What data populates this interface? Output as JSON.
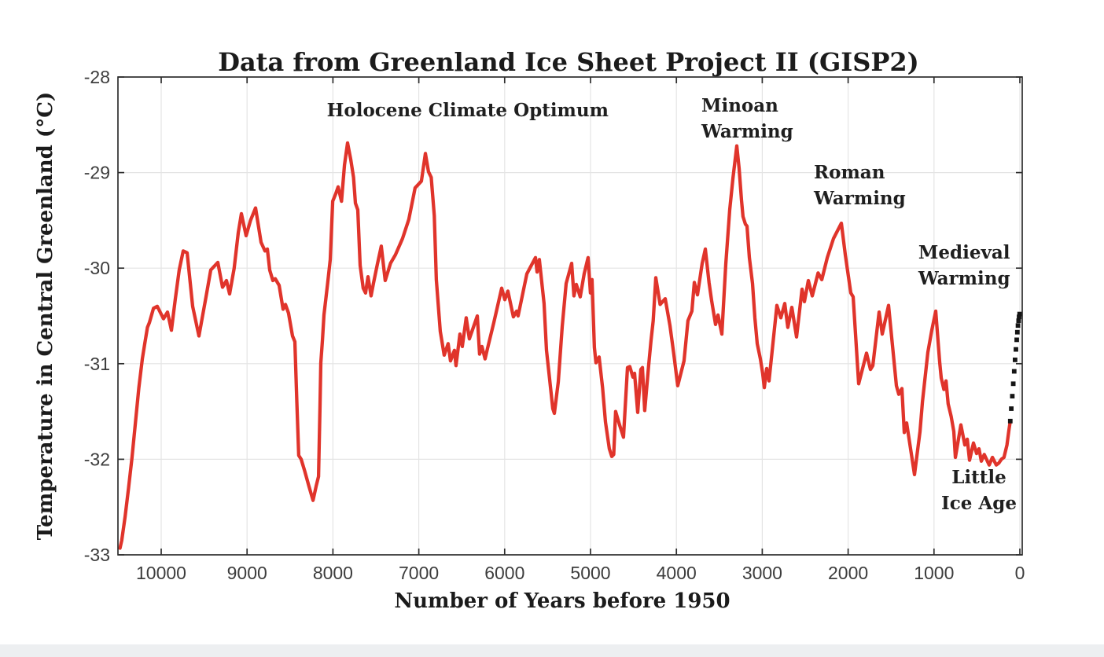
{
  "figure": {
    "title": "Data from Greenland Ice Sheet Project II (GISP2)",
    "x_axis_label": "Number of Years before 1950",
    "y_axis_label": "Temperature in Central Greenland (°C)"
  },
  "colors": {
    "line": "#e0342b",
    "dotted": "#151515",
    "grid": "#e4e4e4",
    "axis": "#2e2e2e",
    "heading_text": "#1b1b1b",
    "tick_text": "#3d3d3d",
    "background": "#ffffff",
    "bottom_strip": "#edeff1"
  },
  "chart_data": {
    "type": "line",
    "title": "Data from Greenland Ice Sheet Project II (GISP2)",
    "xlabel": "Number of Years before 1950",
    "ylabel": "Temperature in Central Greenland (°C)",
    "x_direction": "reversed",
    "xlim": [
      10500,
      0
    ],
    "ylim": [
      -33,
      -28
    ],
    "x_ticks": [
      10000,
      9000,
      8000,
      7000,
      6000,
      5000,
      4000,
      3000,
      2000,
      1000,
      0
    ],
    "y_ticks": [
      -33,
      -32,
      -31,
      -30,
      -29,
      -28
    ],
    "grid": true,
    "legend": "none",
    "series": [
      {
        "name": "GISP2 ice-core temperature reconstruction",
        "color": "#e0342b",
        "style": "solid",
        "points": [
          [
            10480,
            -32.93
          ],
          [
            10460,
            -32.85
          ],
          [
            10420,
            -32.6
          ],
          [
            10380,
            -32.3
          ],
          [
            10340,
            -31.98
          ],
          [
            10300,
            -31.62
          ],
          [
            10260,
            -31.25
          ],
          [
            10220,
            -30.95
          ],
          [
            10190,
            -30.78
          ],
          [
            10160,
            -30.62
          ],
          [
            10137,
            -30.57
          ],
          [
            10090,
            -30.42
          ],
          [
            10046,
            -30.4
          ],
          [
            9973,
            -30.53
          ],
          [
            9927,
            -30.46
          ],
          [
            9881,
            -30.65
          ],
          [
            9835,
            -30.32
          ],
          [
            9790,
            -30.02
          ],
          [
            9744,
            -29.82
          ],
          [
            9698,
            -29.84
          ],
          [
            9634,
            -30.4
          ],
          [
            9560,
            -30.71
          ],
          [
            9478,
            -30.3
          ],
          [
            9423,
            -30.02
          ],
          [
            9341,
            -29.94
          ],
          [
            9286,
            -30.2
          ],
          [
            9240,
            -30.13
          ],
          [
            9203,
            -30.27
          ],
          [
            9150,
            -30.0
          ],
          [
            9103,
            -29.63
          ],
          [
            9066,
            -29.43
          ],
          [
            9011,
            -29.66
          ],
          [
            8960,
            -29.5
          ],
          [
            8901,
            -29.37
          ],
          [
            8837,
            -29.73
          ],
          [
            8791,
            -29.82
          ],
          [
            8764,
            -29.8
          ],
          [
            8736,
            -30.02
          ],
          [
            8700,
            -30.13
          ],
          [
            8672,
            -30.11
          ],
          [
            8626,
            -30.18
          ],
          [
            8581,
            -30.43
          ],
          [
            8553,
            -30.38
          ],
          [
            8517,
            -30.47
          ],
          [
            8471,
            -30.71
          ],
          [
            8443,
            -30.77
          ],
          [
            8420,
            -31.4
          ],
          [
            8398,
            -31.96
          ],
          [
            8370,
            -32.0
          ],
          [
            8330,
            -32.12
          ],
          [
            8280,
            -32.28
          ],
          [
            8232,
            -32.43
          ],
          [
            8195,
            -32.28
          ],
          [
            8168,
            -32.18
          ],
          [
            8150,
            -31.43
          ],
          [
            8141,
            -30.99
          ],
          [
            8122,
            -30.75
          ],
          [
            8104,
            -30.49
          ],
          [
            8060,
            -30.15
          ],
          [
            8031,
            -29.91
          ],
          [
            8003,
            -29.3
          ],
          [
            7967,
            -29.22
          ],
          [
            7940,
            -29.15
          ],
          [
            7900,
            -29.3
          ],
          [
            7865,
            -28.92
          ],
          [
            7830,
            -28.69
          ],
          [
            7793,
            -28.86
          ],
          [
            7760,
            -29.05
          ],
          [
            7738,
            -29.32
          ],
          [
            7711,
            -29.39
          ],
          [
            7683,
            -29.97
          ],
          [
            7647,
            -30.21
          ],
          [
            7620,
            -30.26
          ],
          [
            7592,
            -30.09
          ],
          [
            7556,
            -30.29
          ],
          [
            7528,
            -30.16
          ],
          [
            7483,
            -29.96
          ],
          [
            7437,
            -29.77
          ],
          [
            7391,
            -30.13
          ],
          [
            7330,
            -29.95
          ],
          [
            7272,
            -29.86
          ],
          [
            7190,
            -29.69
          ],
          [
            7116,
            -29.49
          ],
          [
            7043,
            -29.16
          ],
          [
            6970,
            -29.09
          ],
          [
            6923,
            -28.8
          ],
          [
            6887,
            -28.99
          ],
          [
            6855,
            -29.05
          ],
          [
            6820,
            -29.45
          ],
          [
            6796,
            -30.12
          ],
          [
            6750,
            -30.66
          ],
          [
            6704,
            -30.91
          ],
          [
            6658,
            -30.79
          ],
          [
            6631,
            -30.97
          ],
          [
            6585,
            -30.86
          ],
          [
            6567,
            -31.02
          ],
          [
            6521,
            -30.69
          ],
          [
            6494,
            -30.82
          ],
          [
            6448,
            -30.52
          ],
          [
            6411,
            -30.74
          ],
          [
            6319,
            -30.5
          ],
          [
            6292,
            -30.9
          ],
          [
            6265,
            -30.82
          ],
          [
            6228,
            -30.95
          ],
          [
            6200,
            -30.84
          ],
          [
            6126,
            -30.57
          ],
          [
            6035,
            -30.21
          ],
          [
            5998,
            -30.33
          ],
          [
            5962,
            -30.24
          ],
          [
            5898,
            -30.51
          ],
          [
            5861,
            -30.45
          ],
          [
            5843,
            -30.5
          ],
          [
            5742,
            -30.06
          ],
          [
            5641,
            -29.89
          ],
          [
            5623,
            -30.04
          ],
          [
            5596,
            -29.91
          ],
          [
            5541,
            -30.37
          ],
          [
            5513,
            -30.86
          ],
          [
            5486,
            -31.08
          ],
          [
            5440,
            -31.47
          ],
          [
            5421,
            -31.52
          ],
          [
            5375,
            -31.19
          ],
          [
            5330,
            -30.61
          ],
          [
            5284,
            -30.16
          ],
          [
            5220,
            -29.95
          ],
          [
            5193,
            -30.29
          ],
          [
            5166,
            -30.17
          ],
          [
            5120,
            -30.3
          ],
          [
            5074,
            -30.06
          ],
          [
            5028,
            -29.89
          ],
          [
            5001,
            -30.26
          ],
          [
            4983,
            -30.12
          ],
          [
            4955,
            -30.83
          ],
          [
            4937,
            -30.99
          ],
          [
            4900,
            -30.93
          ],
          [
            4860,
            -31.25
          ],
          [
            4826,
            -31.61
          ],
          [
            4781,
            -31.89
          ],
          [
            4753,
            -31.97
          ],
          [
            4730,
            -31.95
          ],
          [
            4708,
            -31.5
          ],
          [
            4662,
            -31.64
          ],
          [
            4616,
            -31.77
          ],
          [
            4570,
            -31.04
          ],
          [
            4543,
            -31.03
          ],
          [
            4506,
            -31.14
          ],
          [
            4487,
            -31.1
          ],
          [
            4451,
            -31.51
          ],
          [
            4414,
            -31.06
          ],
          [
            4396,
            -31.04
          ],
          [
            4369,
            -31.49
          ],
          [
            4323,
            -31.02
          ],
          [
            4296,
            -30.76
          ],
          [
            4270,
            -30.55
          ],
          [
            4240,
            -30.1
          ],
          [
            4190,
            -30.38
          ],
          [
            4130,
            -30.32
          ],
          [
            4075,
            -30.6
          ],
          [
            4030,
            -30.9
          ],
          [
            3984,
            -31.23
          ],
          [
            3911,
            -30.97
          ],
          [
            3865,
            -30.55
          ],
          [
            3820,
            -30.45
          ],
          [
            3791,
            -30.15
          ],
          [
            3755,
            -30.28
          ],
          [
            3700,
            -29.95
          ],
          [
            3663,
            -29.8
          ],
          [
            3620,
            -30.15
          ],
          [
            3590,
            -30.34
          ],
          [
            3544,
            -30.59
          ],
          [
            3516,
            -30.49
          ],
          [
            3471,
            -30.69
          ],
          [
            3425,
            -29.96
          ],
          [
            3379,
            -29.39
          ],
          [
            3342,
            -29.06
          ],
          [
            3297,
            -28.72
          ],
          [
            3269,
            -28.96
          ],
          [
            3242,
            -29.29
          ],
          [
            3224,
            -29.46
          ],
          [
            3196,
            -29.54
          ],
          [
            3178,
            -29.56
          ],
          [
            3150,
            -29.89
          ],
          [
            3114,
            -30.16
          ],
          [
            3086,
            -30.52
          ],
          [
            3059,
            -30.79
          ],
          [
            3022,
            -30.95
          ],
          [
            2995,
            -31.1
          ],
          [
            2976,
            -31.25
          ],
          [
            2949,
            -31.05
          ],
          [
            2921,
            -31.18
          ],
          [
            2830,
            -30.39
          ],
          [
            2784,
            -30.52
          ],
          [
            2738,
            -30.37
          ],
          [
            2702,
            -30.62
          ],
          [
            2656,
            -30.41
          ],
          [
            2601,
            -30.72
          ],
          [
            2537,
            -30.22
          ],
          [
            2509,
            -30.35
          ],
          [
            2463,
            -30.13
          ],
          [
            2418,
            -30.29
          ],
          [
            2350,
            -30.05
          ],
          [
            2307,
            -30.12
          ],
          [
            2243,
            -29.89
          ],
          [
            2170,
            -29.69
          ],
          [
            2079,
            -29.53
          ],
          [
            2033,
            -29.86
          ],
          [
            1969,
            -30.26
          ],
          [
            1941,
            -30.3
          ],
          [
            1877,
            -31.21
          ],
          [
            1786,
            -30.89
          ],
          [
            1740,
            -31.06
          ],
          [
            1712,
            -31.02
          ],
          [
            1639,
            -30.46
          ],
          [
            1603,
            -30.69
          ],
          [
            1529,
            -30.39
          ],
          [
            1438,
            -31.23
          ],
          [
            1410,
            -31.32
          ],
          [
            1374,
            -31.26
          ],
          [
            1346,
            -31.72
          ],
          [
            1319,
            -31.62
          ],
          [
            1227,
            -32.16
          ],
          [
            1163,
            -31.71
          ],
          [
            1135,
            -31.4
          ],
          [
            1071,
            -30.88
          ],
          [
            1026,
            -30.65
          ],
          [
            980,
            -30.45
          ],
          [
            934,
            -30.98
          ],
          [
            916,
            -31.15
          ],
          [
            885,
            -31.27
          ],
          [
            860,
            -31.18
          ],
          [
            835,
            -31.42
          ],
          [
            800,
            -31.55
          ],
          [
            769,
            -31.71
          ],
          [
            751,
            -31.98
          ],
          [
            687,
            -31.64
          ],
          [
            641,
            -31.85
          ],
          [
            613,
            -31.79
          ],
          [
            586,
            -32.01
          ],
          [
            540,
            -31.83
          ],
          [
            504,
            -31.94
          ],
          [
            476,
            -31.89
          ],
          [
            449,
            -32.02
          ],
          [
            415,
            -31.95
          ],
          [
            357,
            -32.06
          ],
          [
            320,
            -31.98
          ],
          [
            275,
            -32.06
          ],
          [
            245,
            -32.04
          ],
          [
            215,
            -32.0
          ],
          [
            185,
            -31.98
          ],
          [
            150,
            -31.85
          ],
          [
            128,
            -31.7
          ],
          [
            112,
            -31.6
          ]
        ]
      },
      {
        "name": "recent warming (dotted extension)",
        "color": "#151515",
        "style": "dotted",
        "points": [
          [
            112,
            -31.6
          ],
          [
            100,
            -31.47
          ],
          [
            88,
            -31.34
          ],
          [
            77,
            -31.21
          ],
          [
            66,
            -31.08
          ],
          [
            56,
            -30.96
          ],
          [
            46,
            -30.85
          ],
          [
            37,
            -30.75
          ],
          [
            29,
            -30.67
          ],
          [
            22,
            -30.6
          ],
          [
            15,
            -30.55
          ],
          [
            9,
            -30.51
          ],
          [
            3,
            -30.48
          ]
        ]
      }
    ],
    "annotations": [
      {
        "id": "holocene-climate-optimum",
        "lines": [
          "Holocene Climate Optimum"
        ],
        "x_years": 6430,
        "y_temp": -28.35,
        "align": "center"
      },
      {
        "id": "minoan-warming",
        "lines": [
          "Minoan",
          "Warming"
        ],
        "x_years": 3709,
        "y_temp": -28.3,
        "align": "left"
      },
      {
        "id": "roman-warming",
        "lines": [
          "Roman",
          "Warming"
        ],
        "x_years": 2399,
        "y_temp": -29.0,
        "align": "left"
      },
      {
        "id": "medieval-warming",
        "lines": [
          "Medieval",
          "Warming"
        ],
        "x_years": 648,
        "y_temp": -29.84,
        "align": "center"
      },
      {
        "id": "little-ice-age",
        "lines": [
          "Little",
          "Ice Age"
        ],
        "x_years": 476,
        "y_temp": -32.19,
        "align": "center"
      }
    ]
  }
}
